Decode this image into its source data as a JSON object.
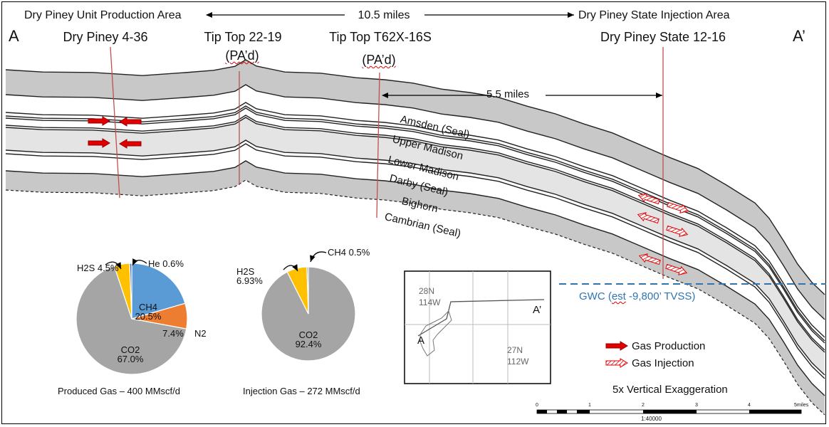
{
  "header": {
    "left_area": "Dry Piney Unit Production Area",
    "distance": "10.5 miles",
    "right_area": "Dry Piney State Injection Area"
  },
  "section": {
    "start_label": "A",
    "end_label": "A’"
  },
  "wells": [
    {
      "name": "Dry Piney 4-36",
      "status": ""
    },
    {
      "name": "Tip Top 22-19",
      "status": "(PA’d)"
    },
    {
      "name": "Tip Top T62X-16S",
      "status": "(PA’d)"
    },
    {
      "name": "Dry Piney State 12-16",
      "status": ""
    }
  ],
  "sub_distance": "5.5 miles",
  "formations": [
    "Amsden (Seal)",
    "Upper Madison",
    "Lower Madison",
    "Darby (Seal)",
    "Bighorn",
    "Cambrian (Seal)"
  ],
  "gwc": {
    "prefix": "GWC (",
    "est": "est",
    "value": " -9,800’ TVSS)"
  },
  "legend": {
    "production": "Gas Production",
    "injection": "Gas Injection"
  },
  "exaggeration": "5x Vertical Exaggeration",
  "scale_bar": {
    "ticks": [
      "0",
      "1",
      "2",
      "3",
      "4",
      "5miles"
    ],
    "ratio": "1:40000"
  },
  "inset_map": {
    "labels": [
      "28N\n114W",
      "27N\n112W"
    ],
    "label_a": "A",
    "label_a_prime": "A’"
  },
  "colors": {
    "ch4": "#5b9bd5",
    "n2": "#ed7d31",
    "co2": "#a5a5a5",
    "h2s": "#ffc000",
    "he": "#4472c4",
    "band_dark": "#c8c8c8",
    "band_light": "#e4e4e4",
    "well_line": "#c0504d",
    "gwc": "#2e75b6",
    "production_arrow": "#e00000"
  },
  "chart_data": [
    {
      "type": "pie",
      "title": "Produced Gas – 400 MMscf/d",
      "slices": [
        {
          "name": "CH4",
          "value": 20.5,
          "label": "20.5%"
        },
        {
          "name": "N2",
          "value": 7.4,
          "label": "7.4%"
        },
        {
          "name": "CO2",
          "value": 67.0,
          "label": "67.0%"
        },
        {
          "name": "H2S",
          "value": 4.5,
          "label": "4.5%"
        },
        {
          "name": "He",
          "value": 0.6,
          "label": "0.6%"
        }
      ]
    },
    {
      "type": "pie",
      "title": "Injection Gas – 272 MMscf/d",
      "slices": [
        {
          "name": "CO2",
          "value": 92.4,
          "label": "92.4%"
        },
        {
          "name": "H2S",
          "value": 6.93,
          "label": "6.93%"
        },
        {
          "name": "CH4",
          "value": 0.5,
          "label": "0.5%"
        }
      ]
    }
  ]
}
